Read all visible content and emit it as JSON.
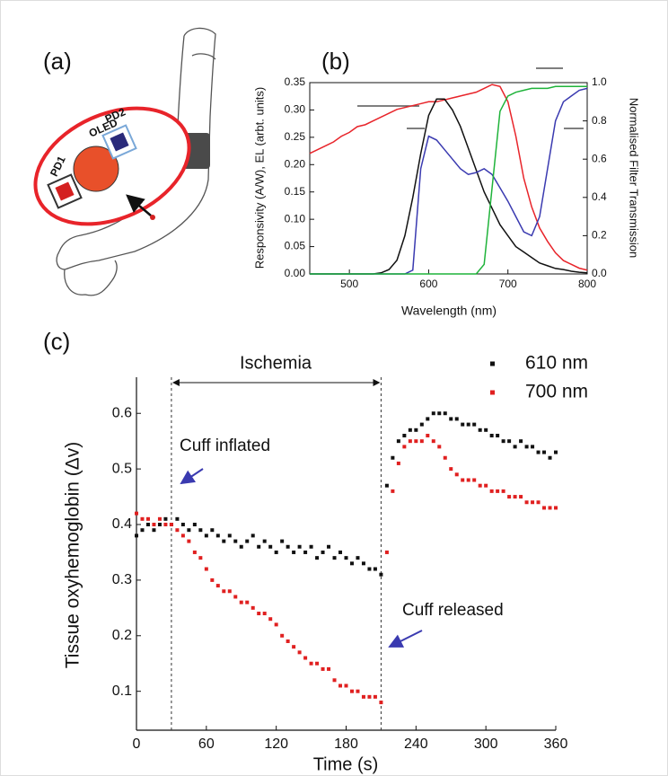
{
  "panel_a": {
    "label": "(a)",
    "oled": "OLED",
    "pd1": "PD1",
    "pd2": "PD2"
  },
  "chart_data": [
    {
      "type": "line",
      "panel_label": "(b)",
      "x_label": "Wavelength (nm)",
      "y_label": "Responsivity (A/W), EL (arbt. units)",
      "y2_label": "Normalised Filter Transmission",
      "xlim": [
        450,
        800
      ],
      "xticks": [
        500,
        600,
        700,
        800
      ],
      "ylim": [
        0,
        0.35
      ],
      "yticks": [
        {
          "value": 0,
          "label": "0.00"
        },
        0.05,
        {
          "value": 0.1,
          "label": "0.10"
        },
        0.15,
        {
          "value": 0.2,
          "label": "0.20"
        },
        0.25,
        {
          "value": 0.3,
          "label": "0.30"
        },
        0.35
      ],
      "y2lim": [
        0,
        1
      ],
      "y2ticks": [
        {
          "value": 0,
          "label": "0.0"
        },
        0.2,
        0.4,
        0.6,
        0.8,
        {
          "value": 1,
          "label": "1.0"
        }
      ],
      "x": [
        450,
        460,
        470,
        480,
        490,
        500,
        510,
        520,
        530,
        540,
        550,
        560,
        570,
        580,
        590,
        600,
        610,
        620,
        630,
        640,
        650,
        660,
        670,
        680,
        690,
        700,
        710,
        720,
        730,
        740,
        750,
        760,
        770,
        780,
        790,
        800
      ],
      "series": [
        {
          "color": "#e8242a",
          "axis": "y2",
          "values": [
            0.63,
            0.65,
            0.67,
            0.69,
            0.72,
            0.74,
            0.77,
            0.78,
            0.8,
            0.82,
            0.84,
            0.86,
            0.87,
            0.88,
            0.89,
            0.9,
            0.9,
            0.91,
            0.92,
            0.93,
            0.94,
            0.95,
            0.97,
            0.99,
            0.98,
            0.9,
            0.72,
            0.5,
            0.35,
            0.24,
            0.17,
            0.11,
            0.07,
            0.05,
            0.03,
            0.02
          ]
        },
        {
          "color": "#111111",
          "values": [
            0,
            0,
            0,
            0,
            0,
            0,
            0,
            0,
            0,
            0.002,
            0.008,
            0.025,
            0.07,
            0.14,
            0.22,
            0.29,
            0.32,
            0.32,
            0.3,
            0.27,
            0.23,
            0.19,
            0.15,
            0.12,
            0.09,
            0.07,
            0.05,
            0.04,
            0.03,
            0.02,
            0.015,
            0.01,
            0.008,
            0.005,
            0.003,
            0.002
          ]
        },
        {
          "color": "#3a3ab0",
          "axis": "y2",
          "values": [
            0,
            0,
            0,
            0,
            0,
            0,
            0,
            0,
            0,
            0,
            0,
            0,
            0,
            0.02,
            0.55,
            0.72,
            0.7,
            0.65,
            0.6,
            0.55,
            0.52,
            0.53,
            0.55,
            0.52,
            0.45,
            0.38,
            0.3,
            0.22,
            0.2,
            0.3,
            0.55,
            0.8,
            0.9,
            0.93,
            0.96,
            0.97
          ]
        },
        {
          "color": "#1fb33a",
          "axis": "y2",
          "values": [
            0,
            0,
            0,
            0,
            0,
            0,
            0,
            0,
            0,
            0,
            0,
            0,
            0,
            0,
            0,
            0,
            0,
            0,
            0,
            0,
            0,
            0,
            0.05,
            0.45,
            0.85,
            0.93,
            0.95,
            0.96,
            0.97,
            0.97,
            0.97,
            0.98,
            0.98,
            0.98,
            0.98,
            0.98
          ]
        }
      ]
    },
    {
      "type": "scatter",
      "panel_label": "(c)",
      "x_label": "Time (s)",
      "y_label": "Tissue oxyhemoglobin (Δv)",
      "xlim": [
        0,
        360
      ],
      "xticks": [
        0,
        60,
        120,
        180,
        240,
        300,
        360
      ],
      "ylim": [
        0.03,
        0.665
      ],
      "yticks": [
        0.1,
        0.2,
        0.3,
        0.4,
        0.5,
        0.6
      ],
      "vlines": [
        30,
        210
      ],
      "annotations": [
        "Ischemia",
        "Cuff inflated",
        "Cuff released"
      ],
      "x": [
        0,
        5,
        10,
        15,
        20,
        25,
        30,
        35,
        40,
        45,
        50,
        55,
        60,
        65,
        70,
        75,
        80,
        85,
        90,
        95,
        100,
        105,
        110,
        115,
        120,
        125,
        130,
        135,
        140,
        145,
        150,
        155,
        160,
        165,
        170,
        175,
        180,
        185,
        190,
        195,
        200,
        205,
        210,
        215,
        220,
        225,
        230,
        235,
        240,
        245,
        250,
        255,
        260,
        265,
        270,
        275,
        280,
        285,
        290,
        295,
        300,
        305,
        310,
        315,
        320,
        325,
        330,
        335,
        340,
        345,
        350,
        355,
        360
      ],
      "series": [
        {
          "name": "610 nm",
          "color": "#111111",
          "values": [
            0.38,
            0.39,
            0.4,
            0.39,
            0.4,
            0.41,
            0.4,
            0.41,
            0.4,
            0.39,
            0.4,
            0.39,
            0.38,
            0.39,
            0.38,
            0.37,
            0.38,
            0.37,
            0.36,
            0.37,
            0.38,
            0.36,
            0.37,
            0.36,
            0.35,
            0.37,
            0.36,
            0.35,
            0.36,
            0.35,
            0.36,
            0.34,
            0.35,
            0.36,
            0.34,
            0.35,
            0.34,
            0.33,
            0.34,
            0.33,
            0.32,
            0.32,
            0.31,
            0.47,
            0.52,
            0.55,
            0.56,
            0.57,
            0.57,
            0.58,
            0.59,
            0.6,
            0.6,
            0.6,
            0.59,
            0.59,
            0.58,
            0.58,
            0.58,
            0.57,
            0.57,
            0.56,
            0.56,
            0.55,
            0.55,
            0.54,
            0.55,
            0.54,
            0.54,
            0.53,
            0.53,
            0.52,
            0.53
          ]
        },
        {
          "name": "700 nm",
          "color": "#e02020",
          "values": [
            0.42,
            0.41,
            0.41,
            0.4,
            0.41,
            0.4,
            0.4,
            0.39,
            0.38,
            0.37,
            0.35,
            0.34,
            0.32,
            0.3,
            0.29,
            0.28,
            0.28,
            0.27,
            0.26,
            0.26,
            0.25,
            0.24,
            0.24,
            0.23,
            0.22,
            0.2,
            0.19,
            0.18,
            0.17,
            0.16,
            0.15,
            0.15,
            0.14,
            0.14,
            0.12,
            0.11,
            0.11,
            0.1,
            0.1,
            0.09,
            0.09,
            0.09,
            0.08,
            0.35,
            0.46,
            0.51,
            0.54,
            0.55,
            0.55,
            0.55,
            0.56,
            0.55,
            0.54,
            0.52,
            0.5,
            0.49,
            0.48,
            0.48,
            0.48,
            0.47,
            0.47,
            0.46,
            0.46,
            0.46,
            0.45,
            0.45,
            0.45,
            0.44,
            0.44,
            0.44,
            0.43,
            0.43,
            0.43
          ]
        }
      ]
    }
  ]
}
